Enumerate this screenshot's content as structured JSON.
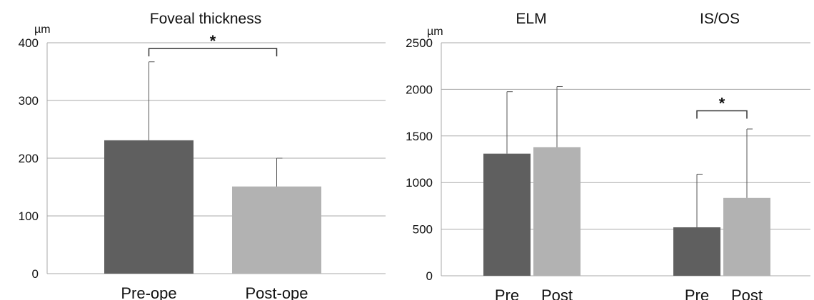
{
  "chart_data": [
    {
      "type": "bar",
      "title": "Foveal thickness",
      "unit": "µm",
      "ylim": [
        0,
        400
      ],
      "yticks": [
        "0",
        "100",
        "200",
        "300",
        "400"
      ],
      "grid": true,
      "categories": [
        "Pre-ope",
        "Post-ope"
      ],
      "values": [
        231,
        151
      ],
      "error_upper": [
        367,
        200
      ],
      "colors": [
        "#5f5f5f",
        "#b2b2b2"
      ],
      "significance": [
        {
          "from": 0,
          "to": 1,
          "label": "*"
        }
      ]
    },
    {
      "type": "bar",
      "unit": "µm",
      "ylim": [
        0,
        2500
      ],
      "yticks": [
        "0",
        "500",
        "1000",
        "1500",
        "2000",
        "2500"
      ],
      "grid": true,
      "groups": [
        {
          "title": "ELM",
          "categories": [
            "Pre",
            "Post"
          ],
          "values": [
            1310,
            1380
          ],
          "error_upper": [
            1975,
            2030
          ],
          "colors": [
            "#5f5f5f",
            "#b2b2b2"
          ]
        },
        {
          "title": "IS/OS",
          "categories": [
            "Pre",
            "Post"
          ],
          "values": [
            520,
            835
          ],
          "error_upper": [
            1090,
            1575
          ],
          "colors": [
            "#5f5f5f",
            "#b2b2b2"
          ],
          "significance": [
            {
              "from": 0,
              "to": 1,
              "label": "*"
            }
          ]
        }
      ]
    }
  ]
}
